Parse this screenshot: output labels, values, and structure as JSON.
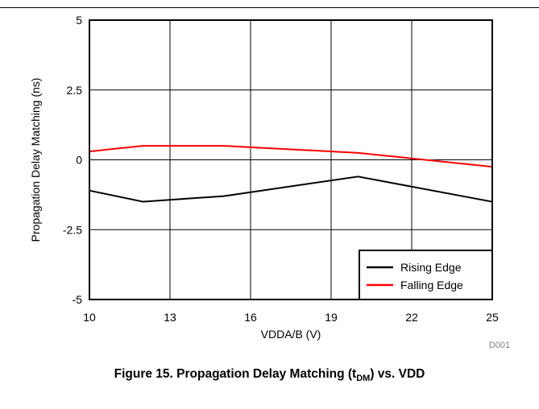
{
  "figure": {
    "caption_prefix": "Figure 15. Propagation Delay Matching (t",
    "caption_sub": "DM",
    "caption_suffix": ") vs. VDD",
    "code": "D001"
  },
  "chart_data": {
    "type": "line",
    "title": "",
    "xlabel": "VDDA/B (V)",
    "ylabel": "Propagation Delay Matching (ns)",
    "xlim": [
      10,
      25
    ],
    "ylim": [
      -5,
      5
    ],
    "xticks": [
      10,
      13,
      16,
      19,
      22,
      25
    ],
    "yticks": [
      5,
      2.5,
      0,
      -2.5,
      -5
    ],
    "ytick_labels": [
      "5",
      "2.5",
      "0",
      "-2.5",
      "-5"
    ],
    "grid": true,
    "legend_position": "bottom-right",
    "series": [
      {
        "name": "Rising Edge",
        "color": "#000000",
        "x": [
          10,
          12,
          15,
          20,
          25
        ],
        "y": [
          -1.1,
          -1.5,
          -1.3,
          -0.6,
          -1.5
        ]
      },
      {
        "name": "Falling Edge",
        "color": "#ff0000",
        "x": [
          10,
          12,
          15,
          20,
          25
        ],
        "y": [
          0.3,
          0.5,
          0.5,
          0.25,
          -0.25
        ]
      }
    ]
  }
}
